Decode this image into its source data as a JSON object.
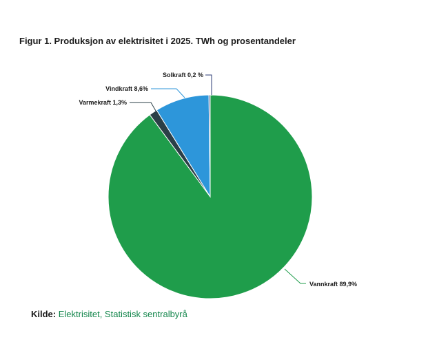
{
  "chart_data": {
    "type": "pie",
    "title": "Figur 1. Produksjon av elektrisitet i 2025. TWh og prosentandeler",
    "unit": "percent",
    "legend": "none",
    "label_style": "callout-with-leader-lines",
    "start_angle_deg": 0,
    "direction": "clockwise",
    "slices": [
      {
        "id": "vannkraft",
        "name": "Vannkraft",
        "value": 89.9,
        "label": "Vannkraft 89,9%",
        "color": "#1f9d4b"
      },
      {
        "id": "varmekraft",
        "name": "Varmekraft",
        "value": 1.3,
        "label": "Varmekraft 1,3%",
        "color": "#2b3f47"
      },
      {
        "id": "vindkraft",
        "name": "Vindkraft",
        "value": 8.6,
        "label": "Vindkraft 8,6%",
        "color": "#2d96da"
      },
      {
        "id": "solkraft",
        "name": "Solkraft",
        "value": 0.2,
        "label": "Solkraft 0,2 %",
        "color": "#2b3b74"
      }
    ]
  },
  "source": {
    "prefix": "Kilde:",
    "text": "Elektrisitet, Statistisk sentralbyrå",
    "link_color": "#11854a"
  },
  "colors": {
    "title_text": "#1a1a1a",
    "label_text": "#1a1a1a",
    "background": "#ffffff",
    "slice_border": "#ffffff"
  }
}
